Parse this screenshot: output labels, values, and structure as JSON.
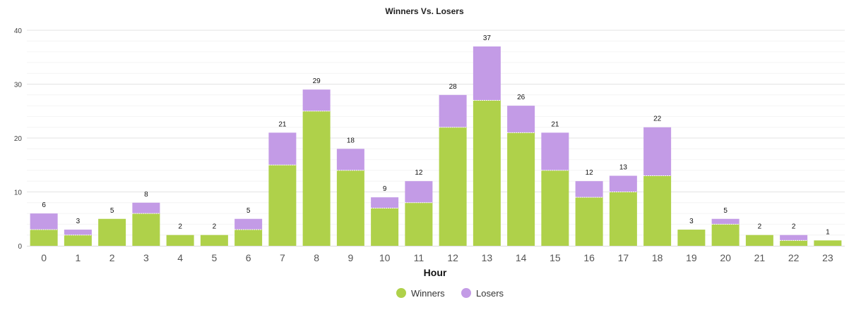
{
  "chart_data": {
    "type": "bar",
    "stacked": true,
    "title": "Winners Vs. Losers",
    "xlabel": "Hour",
    "ylabel": "",
    "categories": [
      "0",
      "1",
      "2",
      "3",
      "4",
      "5",
      "6",
      "7",
      "8",
      "9",
      "10",
      "11",
      "12",
      "13",
      "14",
      "15",
      "16",
      "17",
      "18",
      "19",
      "20",
      "21",
      "22",
      "23"
    ],
    "series": [
      {
        "name": "Winners",
        "color": "#afd14a",
        "values": [
          3,
          2,
          5,
          6,
          2,
          2,
          3,
          15,
          25,
          14,
          7,
          8,
          22,
          27,
          21,
          14,
          9,
          10,
          13,
          3,
          4,
          2,
          1,
          1
        ]
      },
      {
        "name": "Losers",
        "color": "#c39be6",
        "values": [
          3,
          1,
          0,
          2,
          0,
          0,
          2,
          6,
          4,
          4,
          2,
          4,
          6,
          10,
          5,
          7,
          3,
          3,
          9,
          0,
          1,
          0,
          1,
          0
        ]
      }
    ],
    "totals": [
      6,
      3,
      5,
      8,
      2,
      2,
      5,
      21,
      29,
      18,
      9,
      12,
      28,
      37,
      26,
      21,
      12,
      13,
      22,
      3,
      5,
      2,
      2,
      1
    ],
    "ylim": [
      0,
      40
    ],
    "yticks": [
      0,
      10,
      20,
      30,
      40
    ],
    "grid": true,
    "legend_position": "bottom-center"
  }
}
